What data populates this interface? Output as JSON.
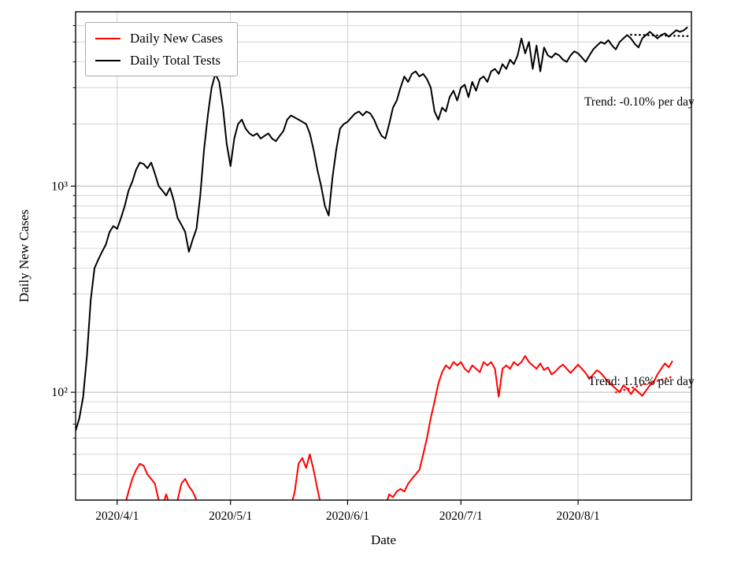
{
  "chart_data": {
    "type": "line",
    "xlabel": "Date",
    "ylabel": "Daily New Cases",
    "x_domain": [
      0,
      163
    ],
    "x_axis": {
      "ticks": [
        {
          "day": 11,
          "label": "2020/4/1"
        },
        {
          "day": 41,
          "label": "2020/5/1"
        },
        {
          "day": 72,
          "label": "2020/6/1"
        },
        {
          "day": 102,
          "label": "2020/7/1"
        },
        {
          "day": 133,
          "label": "2020/8/1"
        }
      ]
    },
    "y_axis": {
      "scale": "log",
      "min": 30,
      "max": 7000,
      "ticks": [
        {
          "value": 1000,
          "label": "10³"
        },
        {
          "value": 100,
          "label": "10²"
        }
      ]
    },
    "grid": true,
    "legend_position": "upper left",
    "series": [
      {
        "name": "Daily New Cases",
        "color": "#ff0000",
        "x_start": 0,
        "y": [
          25,
          25,
          25,
          25,
          25,
          25,
          25,
          25,
          25,
          25,
          25,
          25,
          25,
          28,
          33,
          38,
          42,
          45,
          44,
          40,
          38,
          36,
          30,
          28,
          32,
          28,
          25,
          30,
          36,
          38,
          35,
          33,
          30,
          28,
          25,
          25,
          25,
          25,
          25,
          25,
          25,
          25,
          25,
          25,
          25,
          25,
          25,
          25,
          25,
          25,
          25,
          25,
          25,
          25,
          25,
          25,
          25,
          28,
          33,
          45,
          48,
          43,
          50,
          42,
          34,
          28,
          25,
          25,
          25,
          25,
          25,
          25,
          25,
          25,
          25,
          25,
          25,
          25,
          25,
          25,
          25,
          25,
          28,
          32,
          31,
          33,
          34,
          33,
          36,
          38,
          40,
          42,
          50,
          60,
          75,
          90,
          110,
          125,
          135,
          130,
          140,
          135,
          140,
          130,
          125,
          135,
          130,
          125,
          140,
          135,
          140,
          130,
          95,
          130,
          135,
          130,
          140,
          135,
          140,
          150,
          140,
          135,
          130,
          138,
          128,
          132,
          122,
          126,
          132,
          136,
          130,
          124,
          130,
          136,
          130,
          124,
          116,
          122,
          128,
          124,
          118,
          112,
          108,
          104,
          100,
          108,
          104,
          98,
          104,
          100,
          96,
          102,
          108,
          112,
          122,
          130,
          138,
          132,
          142
        ]
      },
      {
        "name": "Daily Total Tests",
        "color": "#000000",
        "x_start": 0,
        "y": [
          65,
          75,
          95,
          150,
          280,
          400,
          440,
          480,
          520,
          600,
          640,
          620,
          700,
          800,
          950,
          1050,
          1200,
          1300,
          1280,
          1220,
          1300,
          1150,
          1000,
          950,
          900,
          980,
          850,
          700,
          650,
          600,
          480,
          550,
          620,
          900,
          1500,
          2200,
          3000,
          3500,
          3200,
          2400,
          1600,
          1250,
          1700,
          2000,
          2100,
          1900,
          1800,
          1750,
          1800,
          1700,
          1750,
          1800,
          1700,
          1650,
          1750,
          1850,
          2100,
          2200,
          2150,
          2100,
          2050,
          2000,
          1800,
          1500,
          1200,
          1000,
          800,
          720,
          1100,
          1500,
          1900,
          2000,
          2050,
          2150,
          2250,
          2300,
          2200,
          2300,
          2250,
          2100,
          1900,
          1750,
          1700,
          2000,
          2400,
          2600,
          3000,
          3400,
          3200,
          3500,
          3600,
          3400,
          3500,
          3300,
          3000,
          2300,
          2100,
          2400,
          2300,
          2700,
          2900,
          2600,
          3000,
          3100,
          2700,
          3200,
          2900,
          3300,
          3400,
          3200,
          3600,
          3700,
          3500,
          3900,
          3700,
          4100,
          3900,
          4300,
          5200,
          4400,
          5000,
          3700,
          4800,
          3600,
          4700,
          4300,
          4200,
          4400,
          4300,
          4100,
          4000,
          4300,
          4500,
          4400,
          4200,
          4000,
          4300,
          4600,
          4800,
          5000,
          4900,
          5100,
          4800,
          4600,
          5000,
          5200,
          5400,
          5200,
          4900,
          4700,
          5200,
          5400,
          5600,
          5400,
          5200,
          5400,
          5500,
          5300,
          5500,
          5700,
          5600,
          5700,
          5900
        ]
      }
    ],
    "trend_lines": [
      {
        "series": "Daily Total Tests",
        "label": "Trend: -0.10% per day",
        "color": "#000000",
        "x": [
          147,
          163
        ],
        "y": [
          5420,
          5330
        ]
      },
      {
        "series": "Daily New Cases",
        "label": "Trend: 1.16% per day",
        "color": "#ff0000",
        "x": [
          143,
          158
        ],
        "y": [
          100,
          119
        ]
      }
    ]
  }
}
